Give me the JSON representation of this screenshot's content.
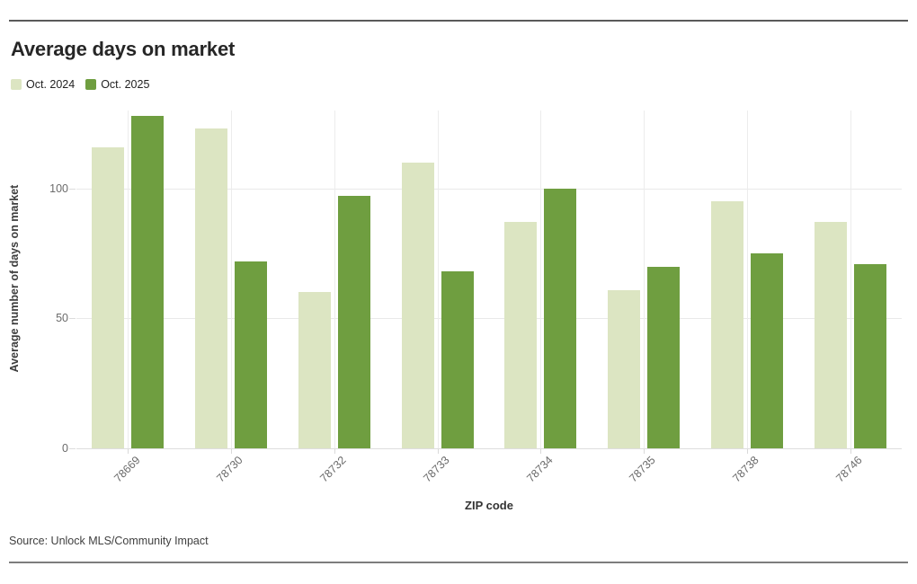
{
  "header": {
    "title": "Average days on market"
  },
  "legend": [
    {
      "label": "Oct. 2024",
      "color": "#dce5c2"
    },
    {
      "label": "Oct. 2025",
      "color": "#6f9e40"
    }
  ],
  "chart_data": {
    "type": "bar",
    "title": "Average days on market",
    "categories": [
      "78669",
      "78730",
      "78732",
      "78733",
      "78734",
      "78735",
      "78738",
      "78746"
    ],
    "series": [
      {
        "name": "Oct. 2024",
        "color": "#dce5c2",
        "values": [
          116,
          123,
          60,
          110,
          87,
          61,
          95,
          87
        ]
      },
      {
        "name": "Oct. 2025",
        "color": "#6f9e40",
        "values": [
          128,
          72,
          97,
          68,
          100,
          70,
          75,
          71
        ]
      }
    ],
    "xlabel": "ZIP code",
    "ylabel": "Average number of days on market",
    "yticks": [
      0,
      50,
      100
    ],
    "ylim": [
      0,
      130
    ],
    "grid": true,
    "legend_position": "top-left"
  },
  "footer": {
    "source": "Source: Unlock MLS/Community Impact"
  }
}
